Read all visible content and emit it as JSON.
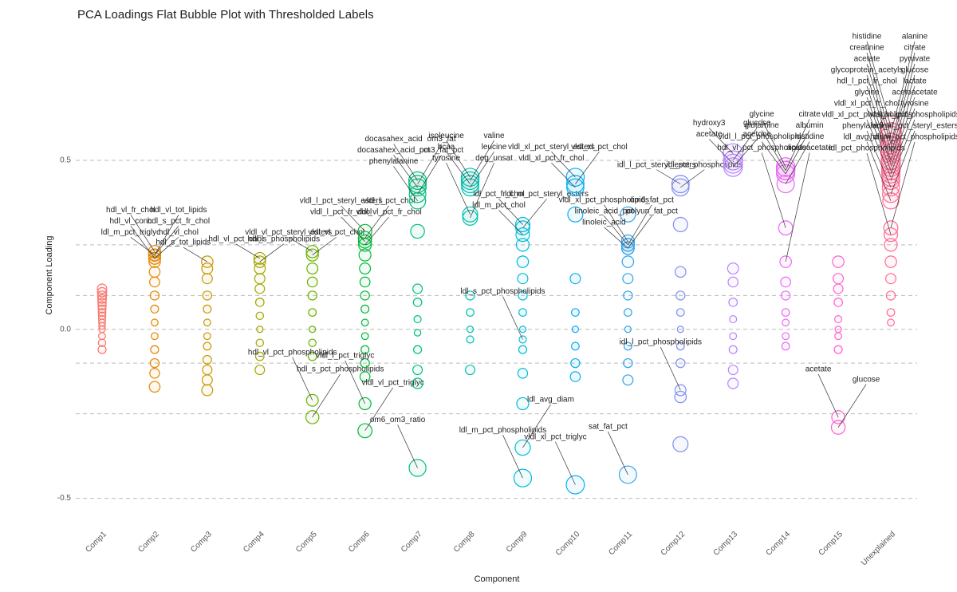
{
  "chart_data": {
    "type": "scatter",
    "title": "PCA Loadings Flat Bubble Plot with Thresholded Labels",
    "x_label": "Component",
    "y_label": "Component Loading",
    "categories": [
      "Comp1",
      "Comp2",
      "Comp3",
      "Comp4",
      "Comp5",
      "Comp6",
      "Comp7",
      "Comp8",
      "Comp9",
      "Comp10",
      "Comp11",
      "Comp12",
      "Comp13",
      "Comp14",
      "Comp15",
      "Unexplained"
    ],
    "ylim": [
      -0.56,
      0.88
    ],
    "yticks": [
      -0.5,
      {
        "value": 0,
        "label": "0.0"
      },
      0.5
    ],
    "threshold_lines": [
      0.25,
      0.1,
      -0.1,
      -0.25
    ],
    "grid": true,
    "series": [
      {
        "name": "Comp1",
        "color": "#F8766D",
        "values": [
          0.12,
          0.11,
          0.1,
          0.09,
          0.08,
          0.07,
          0.06,
          0.05,
          0.04,
          0.03,
          0.02,
          0.01,
          0,
          -0.02,
          -0.04,
          -0.06
        ]
      },
      {
        "name": "Comp2",
        "color": "#E58700",
        "values": [
          0.23,
          0.22,
          0.21,
          0.22,
          0.22,
          0.21,
          0.2,
          0.17,
          0.14,
          0.1,
          0.06,
          0.02,
          -0.02,
          -0.06,
          -0.1,
          -0.13,
          -0.17
        ],
        "labels": [
          "hdl_vl_fr_chol",
          "hdl_vl_tot_lipids",
          "hdl_vl_conc",
          "hdl_s_pct_fr_chol",
          "ldl_m_pct_triglyc",
          "hdl_vl_chol",
          null,
          null,
          null,
          null,
          null,
          null,
          null,
          null,
          null,
          null,
          null
        ]
      },
      {
        "name": "Comp3",
        "color": "#C99800",
        "values": [
          0.2,
          0.18,
          0.15,
          0.1,
          0.06,
          0.02,
          -0.02,
          -0.05,
          -0.09,
          -0.12,
          -0.15,
          -0.18
        ],
        "labels": [
          "hdl_s_tot_lipids",
          null,
          null,
          null,
          null,
          null,
          null,
          null,
          null,
          null,
          null,
          null
        ]
      },
      {
        "name": "Comp4",
        "color": "#A3A500",
        "values": [
          0.21,
          0.2,
          0.18,
          0.15,
          0.12,
          0.08,
          0.04,
          0,
          -0.04,
          -0.08,
          -0.12
        ],
        "labels": [
          "hdl_vl_pct_chol",
          "hdl_s_phospholipids",
          null,
          null,
          null,
          null,
          null,
          null,
          null,
          null,
          null
        ]
      },
      {
        "name": "Comp5",
        "color": "#6BB100",
        "values": [
          0.23,
          0.22,
          -0.21,
          -0.26,
          0.18,
          0.14,
          0.1,
          0.05,
          0,
          -0.04,
          -0.08
        ],
        "labels": [
          "vldl_vl_pct_steryl_esters",
          "vldl_vl_pct_chol",
          "hdl_vl_pct_phospholipids",
          "hdl_s_pct_phospholipids",
          null,
          null,
          null,
          null,
          null,
          null,
          null
        ]
      },
      {
        "name": "Comp6",
        "color": "#00BA38",
        "values": [
          0.29,
          0.27,
          0.26,
          0.25,
          -0.22,
          -0.3,
          0.22,
          0.18,
          0.14,
          0.1,
          0.06,
          0.02,
          -0.02,
          -0.06,
          -0.1,
          -0.14
        ],
        "labels": [
          "vldl_l_pct_steryl_esters",
          "vldl_l_pct_chol",
          "vldl_l_pct_fr_chol",
          "vldl_vl_pct_fr_chol",
          "vldl_l_pct_triglyc",
          "vldl_vl_pct_triglyc",
          null,
          null,
          null,
          null,
          null,
          null,
          null,
          null,
          null,
          null
        ]
      },
      {
        "name": "Comp7",
        "color": "#00BF7D",
        "values": [
          0.44,
          0.43,
          0.42,
          0.4,
          0.38,
          -0.41,
          0.29,
          0.12,
          0.08,
          0.03,
          -0.01,
          -0.06,
          -0.12,
          -0.16
        ],
        "labels": [
          "docasahex_acid",
          "om3_fat",
          "docasahex_acid_pct",
          "om3_fat_pct",
          "phenylalanine",
          "om6_om3_ratio",
          null,
          null,
          null,
          null,
          null,
          null,
          null,
          null
        ]
      },
      {
        "name": "Comp8",
        "color": "#00C0AF",
        "values": [
          0.45,
          0.44,
          0.43,
          0.42,
          0.34,
          0.33,
          0.1,
          0.05,
          0,
          -0.03,
          -0.12
        ],
        "labels": [
          "isoleucine",
          "valine",
          "bcaa",
          "leucine",
          "tyrosine",
          "deg_unsat",
          null,
          null,
          null,
          null,
          null
        ]
      },
      {
        "name": "Comp9",
        "color": "#00BCD8",
        "values": [
          0.31,
          0.3,
          0.28,
          -0.03,
          -0.35,
          -0.44,
          0.25,
          0.2,
          0.15,
          0.1,
          0.05,
          0,
          -0.06,
          -0.13,
          -0.22
        ],
        "labels": [
          "idl_pct_fr_chol",
          "ldl_m_pct_steryl_esters",
          "ldl_m_pct_chol",
          "ldl_s_pct_phospholipids",
          "ldl_avg_diam",
          "ldl_m_pct_phospholipids",
          null,
          null,
          null,
          null,
          null,
          null,
          null,
          null,
          null
        ]
      },
      {
        "name": "Comp10",
        "color": "#00B0F6",
        "values": [
          0.45,
          0.43,
          0.42,
          -0.46,
          0.34,
          0.15,
          0.05,
          0,
          -0.05,
          -0.1,
          -0.14
        ],
        "labels": [
          "vldl_xl_pct_steryl_esters",
          "vldl_xl_pct_chol",
          "vldl_xl_pct_fr_chol",
          "vldl_xl_pct_triglyc",
          null,
          null,
          null,
          null,
          null,
          null,
          null
        ]
      },
      {
        "name": "Comp11",
        "color": "#35A2E8",
        "values": [
          0.26,
          0.25,
          0.25,
          0.24,
          0.24,
          -0.43,
          0.34,
          0.2,
          0.15,
          0.1,
          0.05,
          0,
          -0.05,
          -0.1,
          -0.15
        ],
        "labels": [
          "vldl_xl_pct_phospholipids",
          "om6_fat_pct",
          "linoleic_acid_pct",
          "polyun_fat_pct",
          "linoleic_acid",
          "sat_fat_pct",
          null,
          null,
          null,
          null,
          null,
          null,
          null,
          null,
          null
        ]
      },
      {
        "name": "Comp12",
        "color": "#7F8FEF",
        "values": [
          0.43,
          0.42,
          -0.18,
          0.31,
          0.17,
          0.1,
          0.05,
          0,
          -0.05,
          -0.1,
          -0.2,
          -0.34
        ],
        "labels": [
          "idl_l_pct_steryl_esters",
          "idl_pct_phospholipids",
          "idl_l_pct_phospholipids",
          null,
          null,
          null,
          null,
          null,
          null,
          null,
          null,
          null
        ]
      },
      {
        "name": "Comp13",
        "color": "#B983FF",
        "values": [
          0.52,
          0.5,
          0.49,
          0.48,
          0.18,
          0.14,
          0.08,
          0.03,
          -0.02,
          -0.06,
          -0.12,
          -0.16
        ],
        "labels": [
          "hydroxy3",
          "glucose",
          "acetate",
          "acetone",
          null,
          null,
          null,
          null,
          null,
          null,
          null,
          null
        ]
      },
      {
        "name": "Comp14",
        "color": "#E76BF3",
        "values": [
          0.48,
          0.47,
          0.47,
          0.46,
          0.46,
          0.43,
          0.3,
          0.2,
          0.14,
          0.1,
          0.05,
          0.02,
          -0.02,
          -0.05
        ],
        "labels": [
          "glycine",
          "citrate",
          "glutamine",
          "albumin",
          "vldl_l_pct_phospholipids",
          "histidine",
          "hdl_vl_pct_phospholipids",
          "acetoacetate",
          null,
          null,
          null,
          null,
          null,
          null
        ]
      },
      {
        "name": "Comp15",
        "color": "#FD61D1",
        "values": [
          -0.26,
          -0.29,
          0.2,
          0.15,
          0.12,
          0.08,
          0.03,
          0,
          -0.02,
          -0.06
        ],
        "labels": [
          "acetate",
          "glucose",
          null,
          null,
          null,
          null,
          null,
          null,
          null,
          null
        ]
      },
      {
        "name": "Unexplained",
        "color": "#FF6C91",
        "values": [
          0.6,
          0.58,
          0.57,
          0.55,
          0.55,
          0.54,
          0.53,
          0.52,
          0.5,
          0.5,
          0.49,
          0.48,
          0.47,
          0.46,
          0.45,
          0.44,
          0.42,
          0.4,
          0.38,
          0.3,
          0.28,
          0.25,
          0.2,
          0.15,
          0.1,
          0.05,
          0.02
        ],
        "labels": [
          "histidine",
          "alanine",
          "creatinine",
          "citrate",
          "acetate",
          "pyruvate",
          "glycoprotein_acetyls",
          "glucose",
          "hdl_l_pct_fr_chol",
          "lactate",
          "glycine",
          "acetoacetate",
          "vldl_xl_pct_fr_chol",
          "tyrosine",
          "vldl_xl_pct_phospholipids",
          "vldl_vl_pct_phospholipids",
          "phenylalanine",
          "vldl_xl_pct_steryl_esters",
          "ldl_avg_diam",
          "hdl_vl_pct_phospholipids",
          "idl_pct_phospholipids",
          null,
          null,
          null,
          null,
          null,
          null
        ]
      }
    ]
  }
}
